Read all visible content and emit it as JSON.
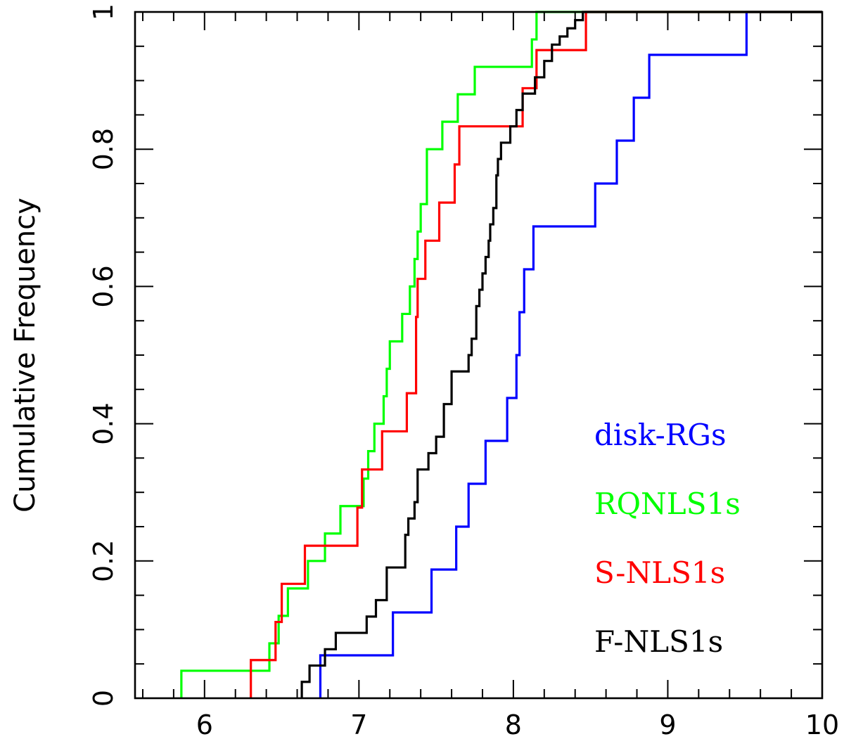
{
  "chart_data": {
    "type": "line",
    "style": "step",
    "title": "",
    "xlabel": "",
    "ylabel": "Cumulative Frequency",
    "xlim": [
      5.55,
      10
    ],
    "ylim": [
      0,
      1
    ],
    "x_ticks": [
      6,
      7,
      8,
      9,
      10
    ],
    "y_ticks": [
      0,
      0.2,
      0.4,
      0.6,
      0.8,
      1
    ],
    "y_tick_labels": [
      "0",
      "0.2",
      "0.4",
      "0.6",
      "0.8",
      "1"
    ],
    "x_tick_labels": [
      "6",
      "7",
      "8",
      "9",
      "10"
    ],
    "grid": false,
    "legend_position": "lower-right",
    "series": [
      {
        "name": "disk-RGs",
        "color": "#0000ff",
        "x": [
          6.75,
          7.22,
          7.47,
          7.63,
          7.71,
          7.82,
          7.96,
          8.02,
          8.04,
          8.07,
          8.13,
          8.53,
          8.67,
          8.78,
          8.88,
          9.51
        ],
        "y": [
          0.0625,
          0.125,
          0.1875,
          0.25,
          0.3125,
          0.375,
          0.4375,
          0.5,
          0.5625,
          0.625,
          0.6875,
          0.75,
          0.8125,
          0.875,
          0.9375,
          1.0
        ]
      },
      {
        "name": "RQNLS1s",
        "color": "#00ff00",
        "x": [
          5.85,
          6.42,
          6.48,
          6.54,
          6.67,
          6.78,
          6.88,
          7.03,
          7.06,
          7.1,
          7.16,
          7.18,
          7.2,
          7.28,
          7.33,
          7.36,
          7.38,
          7.4,
          7.44,
          7.54,
          7.64,
          7.75,
          8.12,
          8.15
        ],
        "y": [
          0.04,
          0.08,
          0.12,
          0.16,
          0.2,
          0.24,
          0.28,
          0.32,
          0.36,
          0.4,
          0.44,
          0.48,
          0.52,
          0.56,
          0.6,
          0.64,
          0.68,
          0.72,
          0.8,
          0.84,
          0.88,
          0.92,
          0.96,
          1.0
        ]
      },
      {
        "name": "S-NLS1s",
        "color": "#ff0000",
        "x": [
          6.3,
          6.46,
          6.5,
          6.65,
          6.99,
          7.02,
          7.15,
          7.31,
          7.37,
          7.38,
          7.43,
          7.52,
          7.62,
          7.65,
          8.06,
          8.15,
          8.47
        ],
        "y": [
          0.0556,
          0.1111,
          0.1667,
          0.2222,
          0.2778,
          0.3333,
          0.3889,
          0.4444,
          0.5556,
          0.6111,
          0.6667,
          0.7222,
          0.7778,
          0.8333,
          0.8889,
          0.9444,
          1.0
        ]
      },
      {
        "name": "F-NLS1s",
        "color": "#000000",
        "x": [
          6.63,
          6.68,
          6.78,
          6.85,
          7.05,
          7.11,
          7.18,
          7.3,
          7.32,
          7.36,
          7.38,
          7.45,
          7.5,
          7.55,
          7.6,
          7.71,
          7.73,
          7.76,
          7.78,
          7.8,
          7.82,
          7.84,
          7.85,
          7.87,
          7.89,
          7.9,
          7.92,
          7.98,
          8.02,
          8.06,
          8.14,
          8.2,
          8.25,
          8.3,
          8.35,
          8.4,
          8.45,
          8.48,
          8.5
        ],
        "y": [
          0.0238,
          0.0476,
          0.0714,
          0.0952,
          0.119,
          0.1429,
          0.1905,
          0.2381,
          0.2619,
          0.2857,
          0.3333,
          0.3571,
          0.381,
          0.4286,
          0.4762,
          0.5,
          0.5238,
          0.5714,
          0.5952,
          0.619,
          0.6429,
          0.6667,
          0.6905,
          0.7143,
          0.7619,
          0.7857,
          0.8095,
          0.8333,
          0.8571,
          0.881,
          0.9048,
          0.9286,
          0.9524,
          0.9643,
          0.9762,
          0.9881,
          1.0,
          1.0,
          1.0
        ]
      }
    ]
  }
}
